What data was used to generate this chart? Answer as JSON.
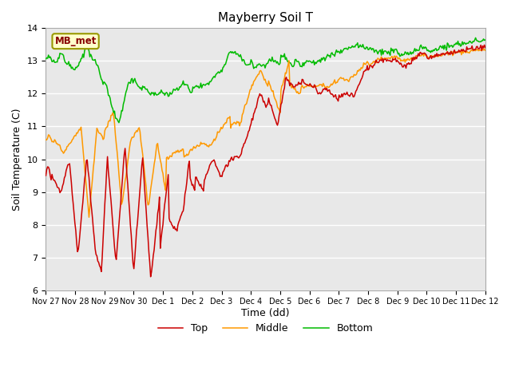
{
  "title": "Mayberry Soil T",
  "xlabel": "Time (dd)",
  "ylabel": "Soil Temperature (C)",
  "ylim": [
    6.0,
    14.0
  ],
  "yticks": [
    6.0,
    7.0,
    8.0,
    9.0,
    10.0,
    11.0,
    12.0,
    13.0,
    14.0
  ],
  "xtick_labels": [
    "Nov 27",
    "Nov 28",
    "Nov 29",
    "Nov 30",
    "Dec 1",
    "Dec 2",
    "Dec 3",
    "Dec 4",
    "Dec 5",
    "Dec 6",
    "Dec 7",
    "Dec 8",
    "Dec 9",
    "Dec 10",
    "Dec 11",
    "Dec 12"
  ],
  "line_colors": {
    "Top": "#cc0000",
    "Middle": "#ff9900",
    "Bottom": "#00bb00"
  },
  "legend_label": "MB_met",
  "plot_bg": "#e8e8e8",
  "grid_color": "#ffffff",
  "title_fontsize": 11,
  "axis_fontsize": 9,
  "tick_fontsize": 8
}
